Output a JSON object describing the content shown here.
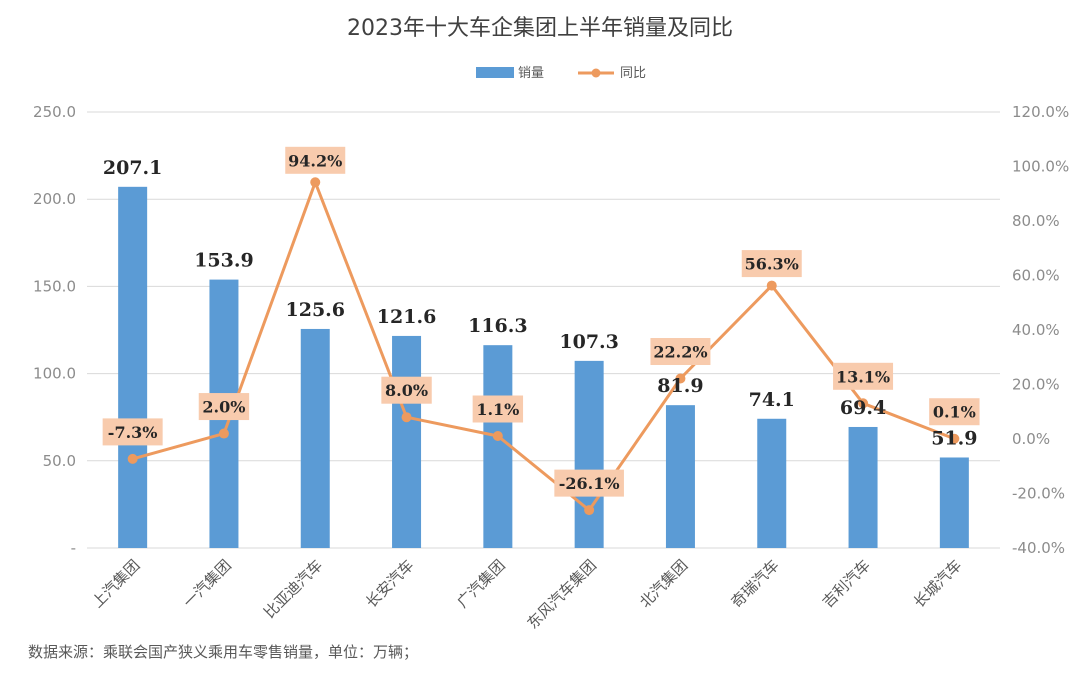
{
  "colors": {
    "bar": "#5b9bd5",
    "line": "#ed9a5e",
    "label_bg": "#f8cbad",
    "grid": "#d9d9d9"
  },
  "legend": {
    "bar_label": "销量",
    "line_label": "同比"
  },
  "footnote": "数据来源：乘联会国产狭义乘用车零售销量，单位：万辆；",
  "chart_data": {
    "type": "bar+line",
    "title": "2023年十大车企集团上半年销量及同比",
    "categories": [
      "上汽集团",
      "一汽集团",
      "比亚迪汽车",
      "长安汽车",
      "广汽集团",
      "东风汽车集团",
      "北汽集团",
      "奇瑞汽车",
      "吉利汽车",
      "长城汽车"
    ],
    "series": [
      {
        "name": "销量",
        "type": "bar",
        "axis": "left",
        "values": [
          207.1,
          153.9,
          125.6,
          121.6,
          116.3,
          107.3,
          81.9,
          74.1,
          69.4,
          51.9
        ],
        "labels": [
          "207.1",
          "153.9",
          "125.6",
          "121.6",
          "116.3",
          "107.3",
          "81.9",
          "74.1",
          "69.4",
          "51.9"
        ]
      },
      {
        "name": "同比",
        "type": "line",
        "axis": "right",
        "values": [
          -7.3,
          2.0,
          94.2,
          8.0,
          1.1,
          -26.1,
          22.2,
          56.3,
          13.1,
          0.1
        ],
        "labels": [
          "-7.3%",
          "2.0%",
          "94.2%",
          "8.0%",
          "1.1%",
          "-26.1%",
          "22.2%",
          "56.3%",
          "13.1%",
          "0.1%"
        ]
      }
    ],
    "left_axis": {
      "range": [
        0,
        250
      ],
      "ticks": [
        0,
        50,
        100,
        150,
        200,
        250
      ],
      "tick_labels": [
        "-",
        "50.0",
        "100.0",
        "150.0",
        "200.0",
        "250.0"
      ]
    },
    "right_axis": {
      "range": [
        -40,
        120
      ],
      "ticks": [
        -40,
        -20,
        0,
        20,
        40,
        60,
        80,
        100,
        120
      ],
      "tick_labels": [
        "-40.0%",
        "-20.0%",
        "0.0%",
        "20.0%",
        "40.0%",
        "60.0%",
        "80.0%",
        "100.0%",
        "120.0%"
      ]
    },
    "grid": true,
    "legend_position": "top-center"
  }
}
